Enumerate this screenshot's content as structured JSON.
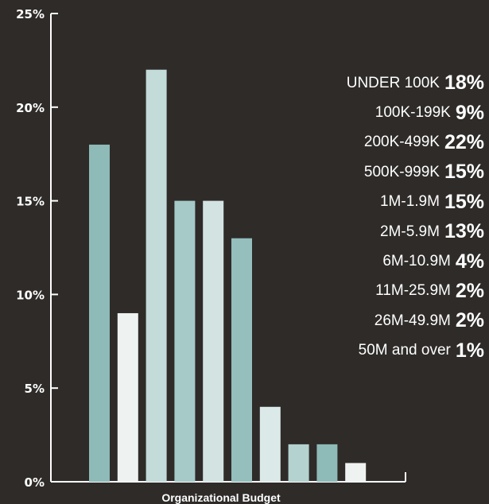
{
  "chart_data": {
    "type": "bar",
    "title": "",
    "xlabel": "Organizational Budget",
    "ylabel": "",
    "ylim": [
      0,
      25
    ],
    "yticks": [
      "0%",
      "5%",
      "10%",
      "15%",
      "20%",
      "25%"
    ],
    "grid": false,
    "categories": [
      "UNDER 100K",
      "100K-199K",
      "200K-499K",
      "500K-999K",
      "1M-1.9M",
      "2M-5.9M",
      "6M-10.9M",
      "11M-25.9M",
      "26M-49.9M",
      "50M and over"
    ],
    "values": [
      18,
      9,
      22,
      15,
      15,
      13,
      4,
      2,
      2,
      1
    ],
    "value_labels": [
      "18%",
      "9%",
      "22%",
      "15%",
      "15%",
      "13%",
      "4%",
      "2%",
      "2%",
      "1%"
    ],
    "bar_colors": [
      "#8ebab7",
      "#eef3f2",
      "#c3dbd9",
      "#a5cac8",
      "#d3e3e2",
      "#94bfbc",
      "#dbe9e8",
      "#b4d2cf",
      "#8ebab7",
      "#eef3f2"
    ],
    "legend_placement": "right"
  },
  "colors": {
    "background": "#2e2b29",
    "axis": "#ffffff",
    "text": "#ffffff"
  }
}
